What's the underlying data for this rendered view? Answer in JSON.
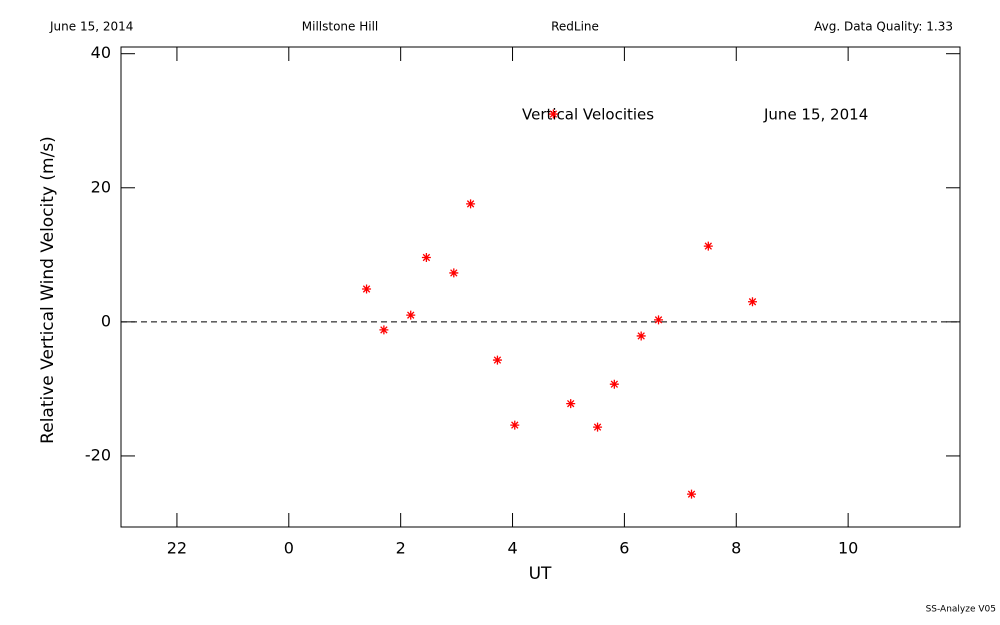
{
  "chart_data": {
    "type": "scatter",
    "header": [
      "June 15, 2014",
      "Millstone Hill",
      "RedLine",
      "Avg. Data Quality: 1.33"
    ],
    "annotations": [
      "Vertical Velocities",
      "June 15, 2014"
    ],
    "footer": "SS-Analyze V05",
    "x_label": "UT",
    "y_label": "Relative Vertical Wind Velocity (m/s)",
    "xlim": [
      -3,
      12
    ],
    "ylim": [
      -30.6,
      41
    ],
    "xticks": [
      {
        "value": -2,
        "label": "22"
      },
      0,
      2,
      4,
      6,
      8,
      10
    ],
    "yticks": [
      -20,
      0,
      20,
      40
    ],
    "reference_line": 0,
    "series": [
      {
        "color": "#ff0000",
        "x": [
          1.39,
          1.7,
          2.18,
          2.46,
          2.95,
          3.25,
          3.73,
          4.04,
          4.73,
          5.04,
          5.52,
          5.82,
          6.3,
          6.61,
          7.2,
          7.5,
          8.29
        ],
        "values": [
          4.9,
          -1.2,
          1.0,
          9.6,
          7.3,
          17.6,
          -5.7,
          -15.4,
          31.0,
          -12.2,
          -15.7,
          -9.3,
          -2.1,
          0.3,
          -25.7,
          11.3,
          3.0
        ]
      }
    ]
  }
}
